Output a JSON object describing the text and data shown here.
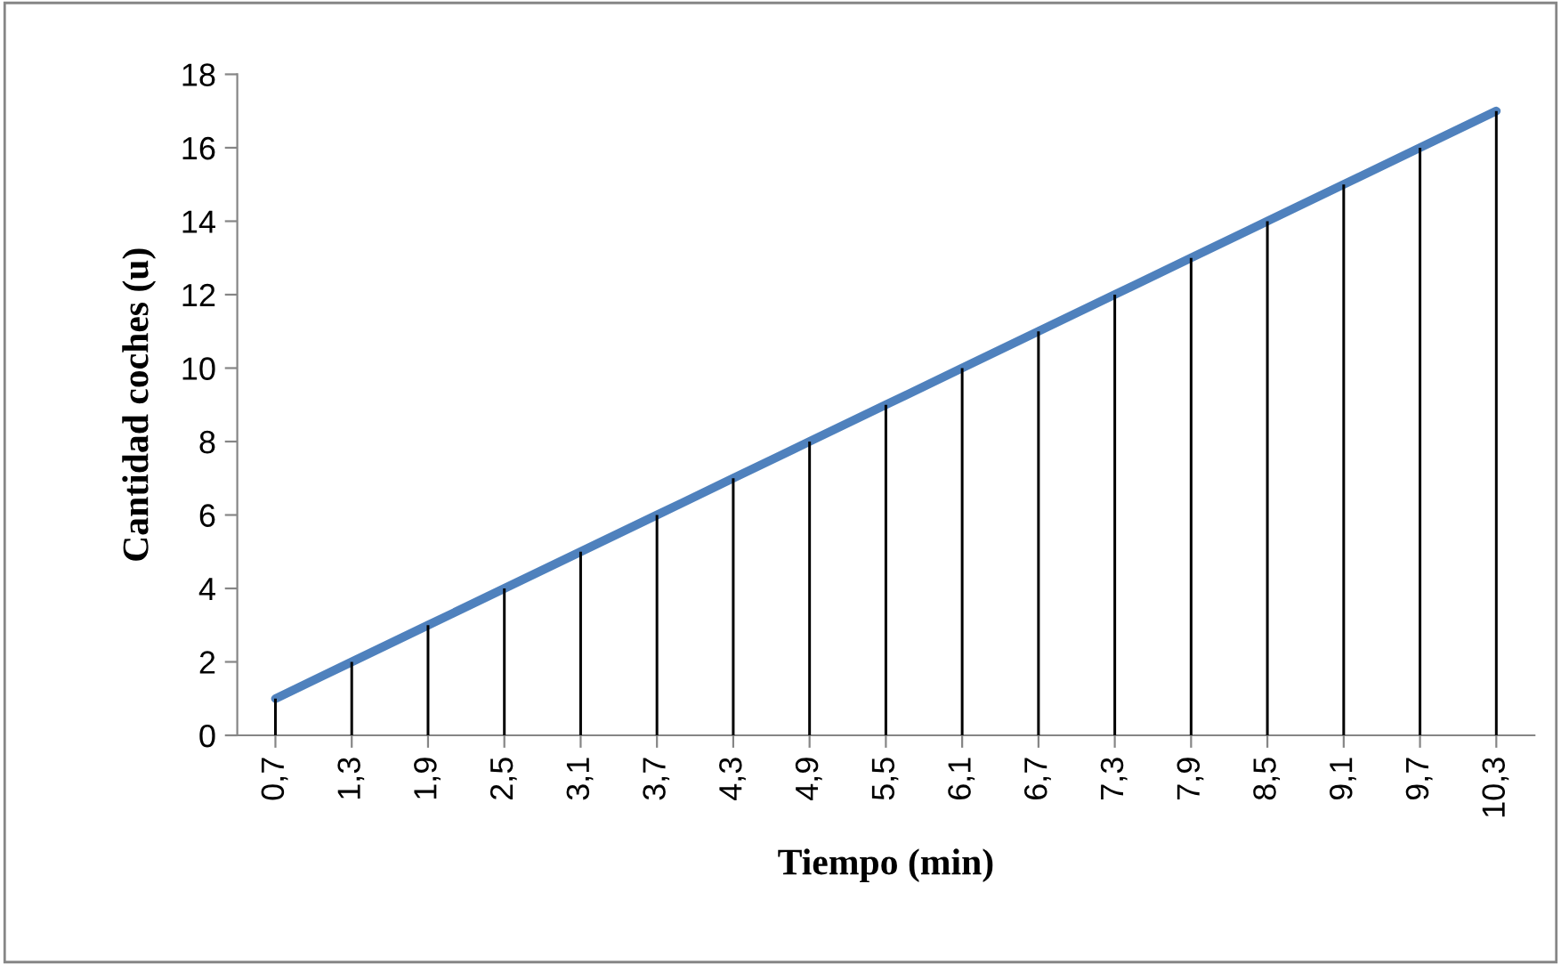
{
  "chart_data": {
    "type": "line",
    "xlabel": "Tiempo (min)",
    "ylabel": "Cantidad coches (u)",
    "categories": [
      "0,7",
      "1,3",
      "1,9",
      "2,5",
      "3,1",
      "3,7",
      "4,3",
      "4,9",
      "5,5",
      "6,1",
      "6,7",
      "7,3",
      "7,9",
      "8,5",
      "9,1",
      "9,7",
      "10,3"
    ],
    "series": [
      {
        "type": "bar",
        "color": "#000000",
        "values": [
          1,
          2,
          3,
          4,
          5,
          6,
          7,
          8,
          9,
          10,
          11,
          12,
          13,
          14,
          15,
          16,
          17
        ]
      },
      {
        "color": "#4f81bd",
        "values": [
          1,
          2,
          3,
          4,
          5,
          6,
          7,
          8,
          9,
          10,
          11,
          12,
          13,
          14,
          15,
          16,
          17
        ]
      }
    ],
    "ylim": [
      0,
      18
    ],
    "yticks": [
      0,
      2,
      4,
      6,
      8,
      10,
      12,
      14,
      16,
      18
    ],
    "grid": false,
    "legend": false,
    "marker": "none"
  }
}
